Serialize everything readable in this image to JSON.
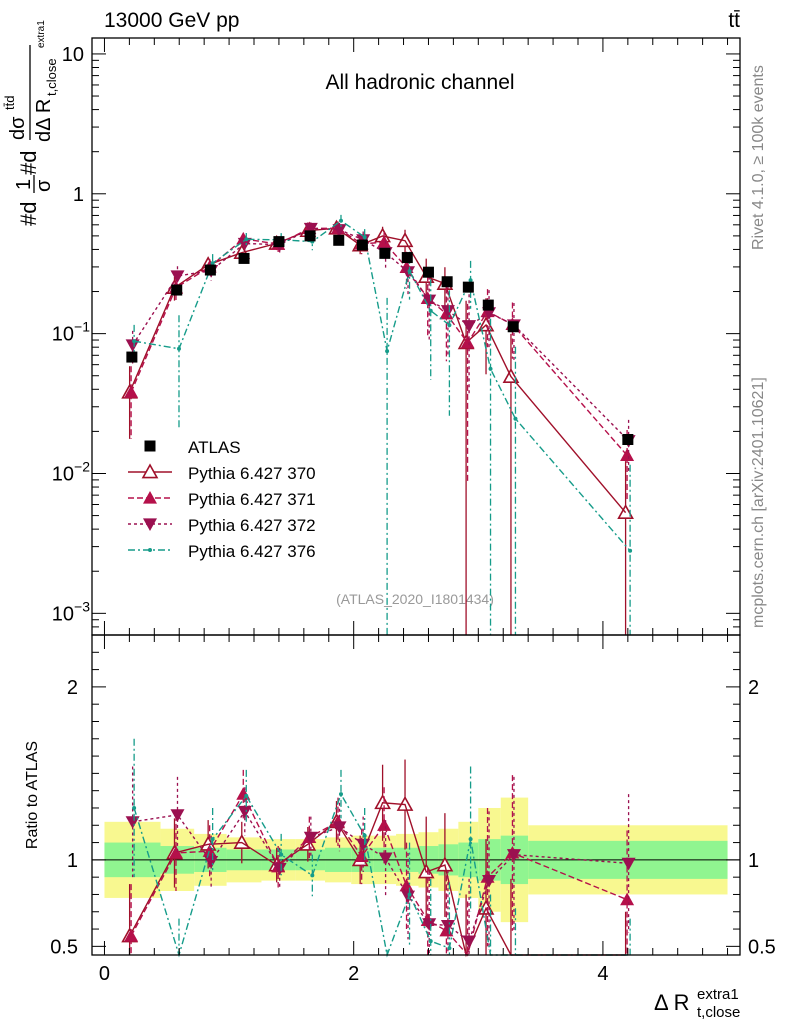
{
  "header": {
    "title": "13000 GeV pp",
    "process": "tt̄",
    "channel": "All hadronic channel",
    "analysis_id": "(ATLAS_2020_I1801434)",
    "rivet_label": "Rivet 4.1.0, ≥ 100k events",
    "mcplots_label": "mcplots.cern.ch [arXiv:2401.10621]"
  },
  "axes": {
    "ylabel_main": "#d1/σ#d dσ^{ttd} / dΔ R_{t,close}^{extra1}",
    "ylabel_main_parts": {
      "a": "#d",
      "b": "1",
      "c": "σ",
      "d": "#d",
      "e": "dσ",
      "f": "tt̄d",
      "g": "dΔ R",
      "h": "t,close",
      "i": "extra1"
    },
    "ylabel_ratio": "Ratio to ATLAS",
    "xlabel": {
      "main": "Δ R",
      "sup": "extra1",
      "sub": "t,close"
    },
    "x_ticks": [
      "0",
      "2",
      "4"
    ],
    "y_ticks_main": [
      {
        "base": "10",
        "exp": "",
        "value": 10
      },
      {
        "base": "1",
        "exp": "",
        "value": 1
      },
      {
        "base": "10",
        "exp": "−1",
        "value": 0.1
      },
      {
        "base": "10",
        "exp": "−2",
        "value": 0.01
      },
      {
        "base": "10",
        "exp": "−3",
        "value": 0.001
      }
    ],
    "y_ticks_ratio": [
      "2",
      "1",
      "0.5"
    ]
  },
  "legend": [
    {
      "label": "ATLAS",
      "key": "atlas"
    },
    {
      "label": "Pythia 6.427 370",
      "key": "p370"
    },
    {
      "label": "Pythia 6.427 371",
      "key": "p371"
    },
    {
      "label": "Pythia 6.427 372",
      "key": "p372"
    },
    {
      "label": "Pythia 6.427 376",
      "key": "p376"
    }
  ],
  "colors": {
    "atlas": "#000000",
    "p370": "#a0102a",
    "p371": "#b5104a",
    "p372": "#9b1050",
    "p376": "#169c8a",
    "band_inner": "#90f590",
    "band_outer": "#f8f890"
  },
  "chart_data": {
    "type": "scatter",
    "title": "All hadronic channel",
    "xlabel": "Δ R_{t,close}^{extra1}",
    "ylabel": "1/σ dσ/dΔR",
    "xlim": [
      -0.1,
      5.1
    ],
    "ylim_main": [
      0.0007,
      13
    ],
    "ylim_ratio": [
      0.45,
      2.3
    ],
    "x": [
      0.22,
      0.58,
      0.85,
      1.12,
      1.4,
      1.65,
      1.88,
      2.07,
      2.25,
      2.43,
      2.6,
      2.75,
      2.92,
      3.08,
      3.28,
      4.2
    ],
    "atlas": {
      "values": [
        0.068,
        0.205,
        0.285,
        0.345,
        0.455,
        0.5,
        0.465,
        0.43,
        0.375,
        0.35,
        0.275,
        0.235,
        0.215,
        0.16,
        0.112,
        0.0175
      ],
      "stat_rel": [
        0.06,
        0.04,
        0.04,
        0.04,
        0.04,
        0.04,
        0.04,
        0.05,
        0.06,
        0.06,
        0.06,
        0.07,
        0.08,
        0.08,
        0.09,
        0.09
      ],
      "band_inner_rel": [
        0.1,
        0.08,
        0.07,
        0.06,
        0.06,
        0.06,
        0.07,
        0.07,
        0.07,
        0.07,
        0.08,
        0.09,
        0.1,
        0.12,
        0.14,
        0.11
      ],
      "band_outer_rel": [
        0.22,
        0.18,
        0.15,
        0.13,
        0.12,
        0.12,
        0.13,
        0.14,
        0.14,
        0.15,
        0.16,
        0.18,
        0.22,
        0.3,
        0.36,
        0.2
      ],
      "bin_edges": [
        0.0,
        0.45,
        0.72,
        0.98,
        1.26,
        1.53,
        1.77,
        1.98,
        2.16,
        2.34,
        2.52,
        2.68,
        2.84,
        3.0,
        3.18,
        3.4,
        5.0
      ]
    },
    "series": [
      {
        "name": "Pythia 6.427 370",
        "key": "p370",
        "marker": "triangle-open",
        "dash": "",
        "ratio": [
          0.56,
          1.04,
          1.09,
          1.1,
          0.97,
          1.09,
          1.22,
          1.0,
          1.33,
          1.32,
          0.93,
          0.97,
          0.4,
          0.72,
          0.44,
          0.3
        ],
        "ratio_err": [
          0.3,
          0.2,
          0.14,
          0.12,
          0.1,
          0.1,
          0.12,
          0.14,
          0.22,
          0.26,
          0.32,
          0.3,
          0.4,
          0.4,
          0.45,
          0.4
        ]
      },
      {
        "name": "Pythia 6.427 371",
        "key": "p371",
        "marker": "triangle-up",
        "dash": "6,3",
        "ratio": [
          0.56,
          1.04,
          1.05,
          1.38,
          0.96,
          1.13,
          1.22,
          1.02,
          1.2,
          0.85,
          0.65,
          0.59,
          0.4,
          0.9,
          1.04,
          0.77
        ],
        "ratio_err": [
          0.3,
          0.22,
          0.15,
          0.14,
          0.12,
          0.12,
          0.14,
          0.16,
          0.22,
          0.25,
          0.3,
          0.32,
          0.36,
          0.4,
          0.45,
          0.4
        ]
      },
      {
        "name": "Pythia 6.427 372",
        "key": "p372",
        "marker": "triangle-down",
        "dash": "3,3",
        "ratio": [
          1.22,
          1.26,
          0.99,
          1.28,
          0.95,
          1.13,
          1.19,
          1.09,
          1.01,
          0.79,
          0.63,
          0.62,
          0.53,
          0.88,
          1.03,
          0.98
        ],
        "ratio_err": [
          0.32,
          0.22,
          0.15,
          0.14,
          0.12,
          0.12,
          0.14,
          0.16,
          0.22,
          0.25,
          0.3,
          0.32,
          0.36,
          0.4,
          0.45,
          0.4
        ]
      },
      {
        "name": "Pythia 6.427 376",
        "key": "p376",
        "marker": "dot",
        "dash": "7,3,2,3",
        "ratio": [
          1.3,
          0.38,
          1.12,
          1.37,
          1.03,
          0.91,
          1.38,
          1.14,
          0.2,
          0.8,
          0.53,
          0.49,
          1.12,
          0.35,
          0.22,
          0.16
        ],
        "ratio_err": [
          0.4,
          0.28,
          0.18,
          0.15,
          0.12,
          0.12,
          0.14,
          0.16,
          0.28,
          0.3,
          0.36,
          0.38,
          0.42,
          0.45,
          0.5,
          0.5
        ]
      }
    ]
  }
}
